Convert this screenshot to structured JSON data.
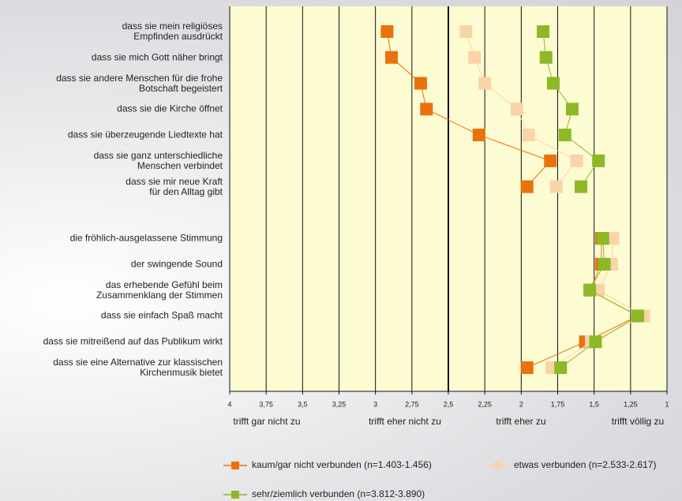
{
  "chart_data": {
    "type": "dot",
    "categories": [
      "dass sie mein religiöses\nEmpfinden ausdrückt",
      "dass sie mich Gott näher bringt",
      "dass sie andere Menschen für die frohe\nBotschaft begeistert",
      "dass sie die Kirche öffnet",
      "dass sie überzeugende Liedtexte hat",
      "dass sie ganz unterschiedliche\nMenschen verbindet",
      "dass sie mir neue Kraft\nfür den Alltag gibt",
      null,
      "die fröhlich-ausgelassene Stimmung",
      "der swingende Sound",
      "das erhebende Gefühl beim\nZusammenklang der Stimmen",
      "dass sie einfach Spaß macht",
      "dass sie mitreißend auf das Publikum wirkt",
      "dass sie eine Alternative zur klassischen\nKirchenmusik bietet"
    ],
    "series": [
      {
        "name": "kaum/gar nicht verbunden (n=1.403-1.456)",
        "color": "#e8720c",
        "values": [
          2.92,
          2.89,
          2.69,
          2.65,
          2.29,
          1.8,
          1.96,
          null,
          1.45,
          1.45,
          1.53,
          1.2,
          1.56,
          1.96
        ]
      },
      {
        "name": "etwas verbunden (n=2.533-2.617)",
        "color": "#fbd3a8",
        "values": [
          2.38,
          2.32,
          2.25,
          2.03,
          1.95,
          1.62,
          1.76,
          null,
          1.37,
          1.38,
          1.47,
          1.16,
          1.52,
          1.79
        ]
      },
      {
        "name": "sehr/ziemlich verbunden (n=3.812-3.890)",
        "color": "#8db828",
        "values": [
          1.85,
          1.83,
          1.78,
          1.65,
          1.7,
          1.47,
          1.59,
          null,
          1.44,
          1.43,
          1.53,
          1.2,
          1.49,
          1.73
        ]
      }
    ],
    "xlim": [
      4,
      1
    ],
    "xticks": [
      4,
      {
        "value": 3.75,
        "label": "3,75"
      },
      {
        "value": 3.5,
        "label": "3,5"
      },
      {
        "value": 3.25,
        "label": "3,25"
      },
      3,
      {
        "value": 2.75,
        "label": "2,75"
      },
      {
        "value": 2.5,
        "label": "2,5"
      },
      {
        "value": 2.25,
        "label": "2,25"
      },
      2,
      {
        "value": 1.75,
        "label": "1,75"
      },
      {
        "value": 1.5,
        "label": "1,5"
      },
      {
        "value": 1.25,
        "label": "1,25"
      },
      1
    ],
    "scale_labels": [
      "trifft gar nicht zu",
      "trifft eher nicht zu",
      "trifft eher zu",
      "trifft völlig zu"
    ],
    "grid": true
  }
}
